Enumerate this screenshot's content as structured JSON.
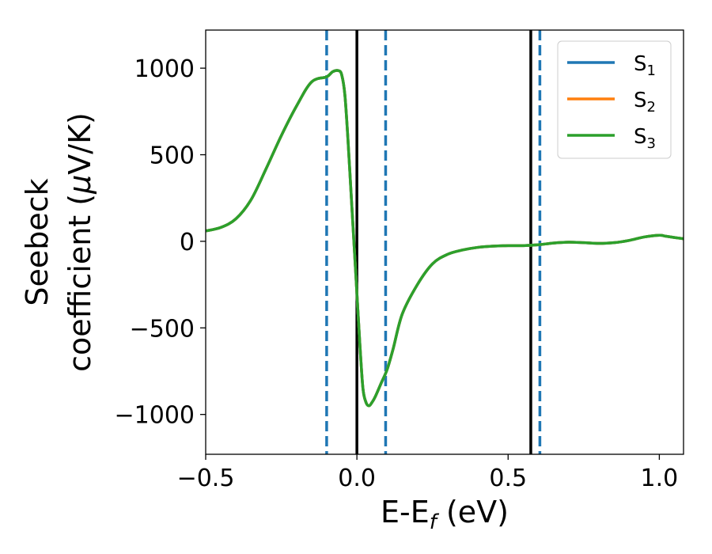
{
  "chart_data": {
    "type": "line",
    "title": "",
    "xlabel": "E-E",
    "xlabel_sub": "f",
    "xlabel_unit": " (eV)",
    "ylabel_line1": "Seebeck",
    "ylabel_line2": "coefficient  (",
    "ylabel_mu": "μ",
    "ylabel_unit": "V/K)",
    "xlim": [
      -0.5,
      1.08
    ],
    "ylim": [
      -1230,
      1220
    ],
    "xticks": [
      -0.5,
      0.0,
      0.5,
      1.0
    ],
    "xtick_labels": [
      "−0.5",
      "0.0",
      "0.5",
      "1.0"
    ],
    "yticks": [
      1000,
      500,
      0,
      -500,
      -1000
    ],
    "ytick_labels": [
      "1000",
      "500",
      "0",
      "−500",
      "−1000"
    ],
    "legend_position": "top-right",
    "grid": false,
    "vlines": [
      {
        "x": -0.1,
        "color": "#1f77b4",
        "style": "dashed"
      },
      {
        "x": 0.0,
        "color": "#000000",
        "style": "solid"
      },
      {
        "x": 0.095,
        "color": "#1f77b4",
        "style": "dashed"
      },
      {
        "x": 0.575,
        "color": "#000000",
        "style": "solid"
      },
      {
        "x": 0.605,
        "color": "#1f77b4",
        "style": "dashed"
      }
    ],
    "series": [
      {
        "name": "S",
        "sub": "1",
        "color": "#1f77b4",
        "x": [
          -0.5,
          -0.45,
          -0.4,
          -0.35,
          -0.3,
          -0.25,
          -0.2,
          -0.15,
          -0.1,
          -0.08,
          -0.06,
          -0.05,
          -0.04,
          -0.03,
          -0.02,
          -0.01,
          0.0,
          0.01,
          0.02,
          0.03,
          0.04,
          0.05,
          0.06,
          0.08,
          0.1,
          0.12,
          0.15,
          0.2,
          0.25,
          0.3,
          0.35,
          0.4,
          0.45,
          0.5,
          0.55,
          0.6,
          0.65,
          0.7,
          0.75,
          0.8,
          0.85,
          0.9,
          0.95,
          1.0,
          1.02,
          1.05,
          1.08
        ],
        "y": [
          60,
          80,
          130,
          240,
          420,
          610,
          780,
          920,
          950,
          980,
          985,
          960,
          850,
          600,
          300,
          0,
          -300,
          -600,
          -850,
          -930,
          -950,
          -930,
          -900,
          -820,
          -740,
          -620,
          -420,
          -250,
          -130,
          -75,
          -50,
          -35,
          -28,
          -25,
          -25,
          -20,
          -10,
          -5,
          -8,
          -12,
          -8,
          5,
          25,
          35,
          30,
          22,
          15
        ]
      },
      {
        "name": "S",
        "sub": "2",
        "color": "#ff7f0e",
        "x": [
          -0.5,
          -0.45,
          -0.4,
          -0.35,
          -0.3,
          -0.25,
          -0.2,
          -0.15,
          -0.1,
          -0.08,
          -0.06,
          -0.05,
          -0.04,
          -0.03,
          -0.02,
          -0.01,
          0.0,
          0.01,
          0.02,
          0.03,
          0.04,
          0.05,
          0.06,
          0.08,
          0.1,
          0.12,
          0.15,
          0.2,
          0.25,
          0.3,
          0.35,
          0.4,
          0.45,
          0.5,
          0.55,
          0.6,
          0.65,
          0.7,
          0.75,
          0.8,
          0.85,
          0.9,
          0.95,
          1.0,
          1.02,
          1.05,
          1.08
        ],
        "y": [
          60,
          80,
          130,
          240,
          420,
          610,
          780,
          920,
          950,
          980,
          985,
          960,
          850,
          600,
          300,
          0,
          -300,
          -600,
          -850,
          -930,
          -950,
          -930,
          -900,
          -820,
          -740,
          -620,
          -420,
          -250,
          -130,
          -75,
          -50,
          -35,
          -28,
          -25,
          -25,
          -20,
          -10,
          -5,
          -8,
          -12,
          -8,
          5,
          25,
          35,
          30,
          22,
          15
        ]
      },
      {
        "name": "S",
        "sub": "3",
        "color": "#2ca02c",
        "x": [
          -0.5,
          -0.45,
          -0.4,
          -0.35,
          -0.3,
          -0.25,
          -0.2,
          -0.15,
          -0.1,
          -0.08,
          -0.06,
          -0.05,
          -0.04,
          -0.03,
          -0.02,
          -0.01,
          0.0,
          0.01,
          0.02,
          0.03,
          0.04,
          0.05,
          0.06,
          0.08,
          0.1,
          0.12,
          0.15,
          0.2,
          0.25,
          0.3,
          0.35,
          0.4,
          0.45,
          0.5,
          0.55,
          0.6,
          0.65,
          0.7,
          0.75,
          0.8,
          0.85,
          0.9,
          0.95,
          1.0,
          1.02,
          1.05,
          1.08
        ],
        "y": [
          60,
          80,
          130,
          240,
          420,
          610,
          780,
          920,
          950,
          980,
          985,
          960,
          850,
          600,
          300,
          0,
          -300,
          -600,
          -850,
          -930,
          -950,
          -930,
          -900,
          -820,
          -740,
          -620,
          -420,
          -250,
          -130,
          -75,
          -50,
          -35,
          -28,
          -25,
          -25,
          -20,
          -10,
          -5,
          -8,
          -12,
          -8,
          5,
          25,
          35,
          30,
          22,
          15
        ]
      }
    ]
  }
}
